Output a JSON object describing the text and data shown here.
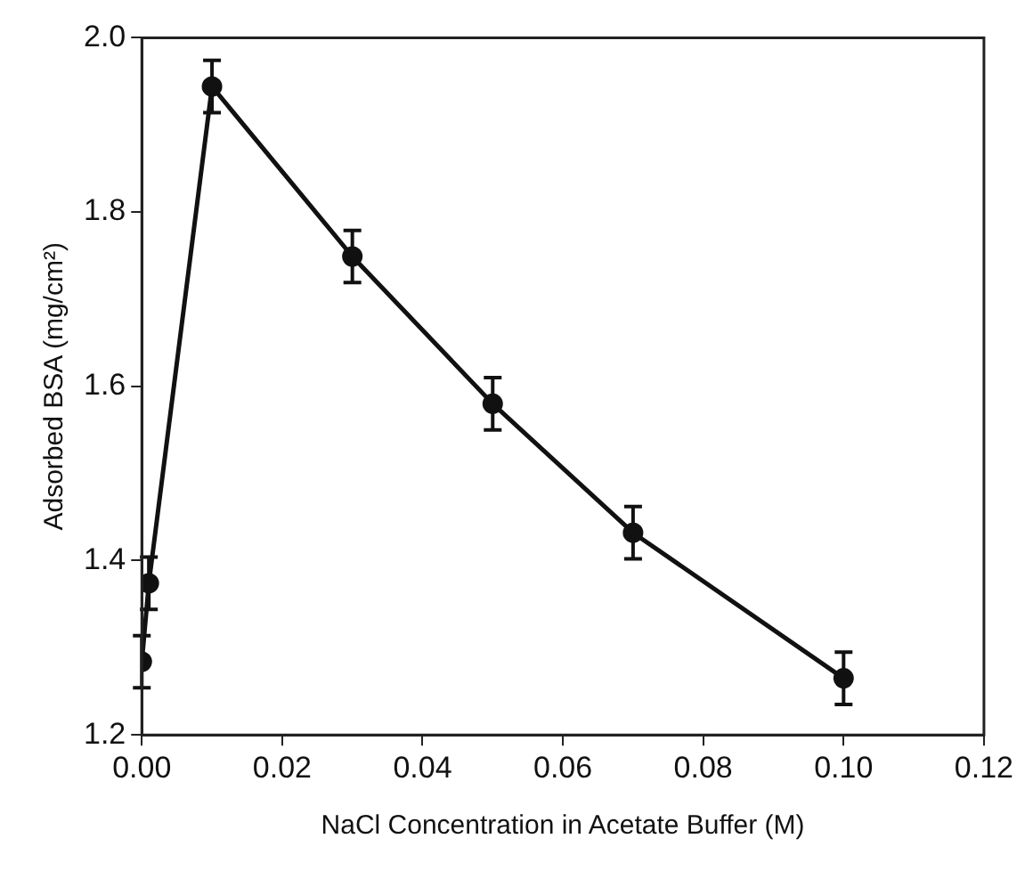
{
  "chart_data": {
    "type": "line",
    "xlabel": "NaCl Concentration in Acetate Buffer (M)",
    "ylabel": "Adsorbed BSA (mg/cm²)",
    "xlim": [
      0,
      0.12
    ],
    "xticks": [
      {
        "value": 0,
        "label": "0.00"
      },
      {
        "value": 0.02,
        "label": "0.02"
      },
      {
        "value": 0.04,
        "label": "0.04"
      },
      {
        "value": 0.06,
        "label": "0.06"
      },
      {
        "value": 0.08,
        "label": "0.08"
      },
      {
        "value": 0.1,
        "label": "0.10"
      },
      {
        "value": 0.12,
        "label": "0.12"
      }
    ],
    "ylim": [
      1.2,
      2.0
    ],
    "yticks": [
      {
        "value": 1.2,
        "label": "1.2"
      },
      {
        "value": 1.4,
        "label": "1.4"
      },
      {
        "value": 1.6,
        "label": "1.6"
      },
      {
        "value": 1.8,
        "label": "1.8"
      },
      {
        "value": 2.0,
        "label": "2.0"
      }
    ],
    "series": [
      {
        "color": "#111111",
        "x": [
          0,
          0.001,
          0.01,
          0.03,
          0.05,
          0.07,
          0.1
        ],
        "values": [
          1.284,
          1.374,
          1.944,
          1.749,
          1.58,
          1.432,
          1.265
        ],
        "errors": [
          0.03,
          0.03,
          0.03,
          0.03,
          0.03,
          0.03,
          0.03
        ]
      }
    ],
    "marker": "circle",
    "line_style": "solid",
    "legend": false,
    "grid": false
  }
}
